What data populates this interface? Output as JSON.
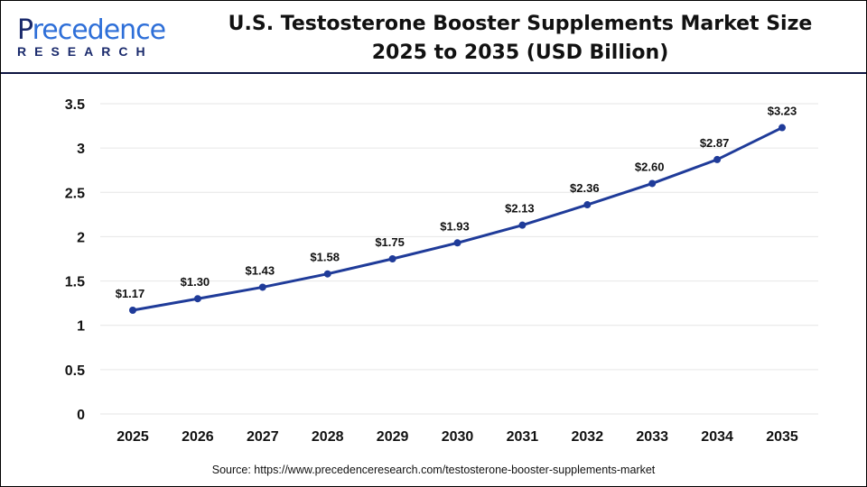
{
  "logo": {
    "text_main": "Precedence",
    "text_sub": "RESEARCH"
  },
  "title_line1": "U.S. Testosterone Booster Supplements Market Size",
  "title_line2": "2025 to 2035 (USD Billion)",
  "source": "Source: https://www.precedenceresearch.com/testosterone-booster-supplements-market",
  "colors": {
    "line": "#1f3b99",
    "grid": "#e6e6e6",
    "header_rule": "#0d1440"
  },
  "chart_data": {
    "type": "line",
    "title": "U.S. Testosterone Booster Supplements Market Size 2025 to 2035 (USD Billion)",
    "x": [
      "2025",
      "2026",
      "2027",
      "2028",
      "2029",
      "2030",
      "2031",
      "2032",
      "2033",
      "2034",
      "2035"
    ],
    "values": [
      1.17,
      1.3,
      1.43,
      1.58,
      1.75,
      1.93,
      2.13,
      2.36,
      2.6,
      2.87,
      3.23
    ],
    "labels": [
      "$1.17",
      "$1.30",
      "$1.43",
      "$1.58",
      "$1.75",
      "$1.93",
      "$2.13",
      "$2.36",
      "$2.60",
      "$2.87",
      "$3.23"
    ],
    "yticks": [
      "0",
      "0.5",
      "1",
      "1.5",
      "2",
      "2.5",
      "3",
      "3.5"
    ],
    "ylim": [
      0,
      3.5
    ],
    "grid": true,
    "xlabel": "",
    "ylabel": ""
  }
}
